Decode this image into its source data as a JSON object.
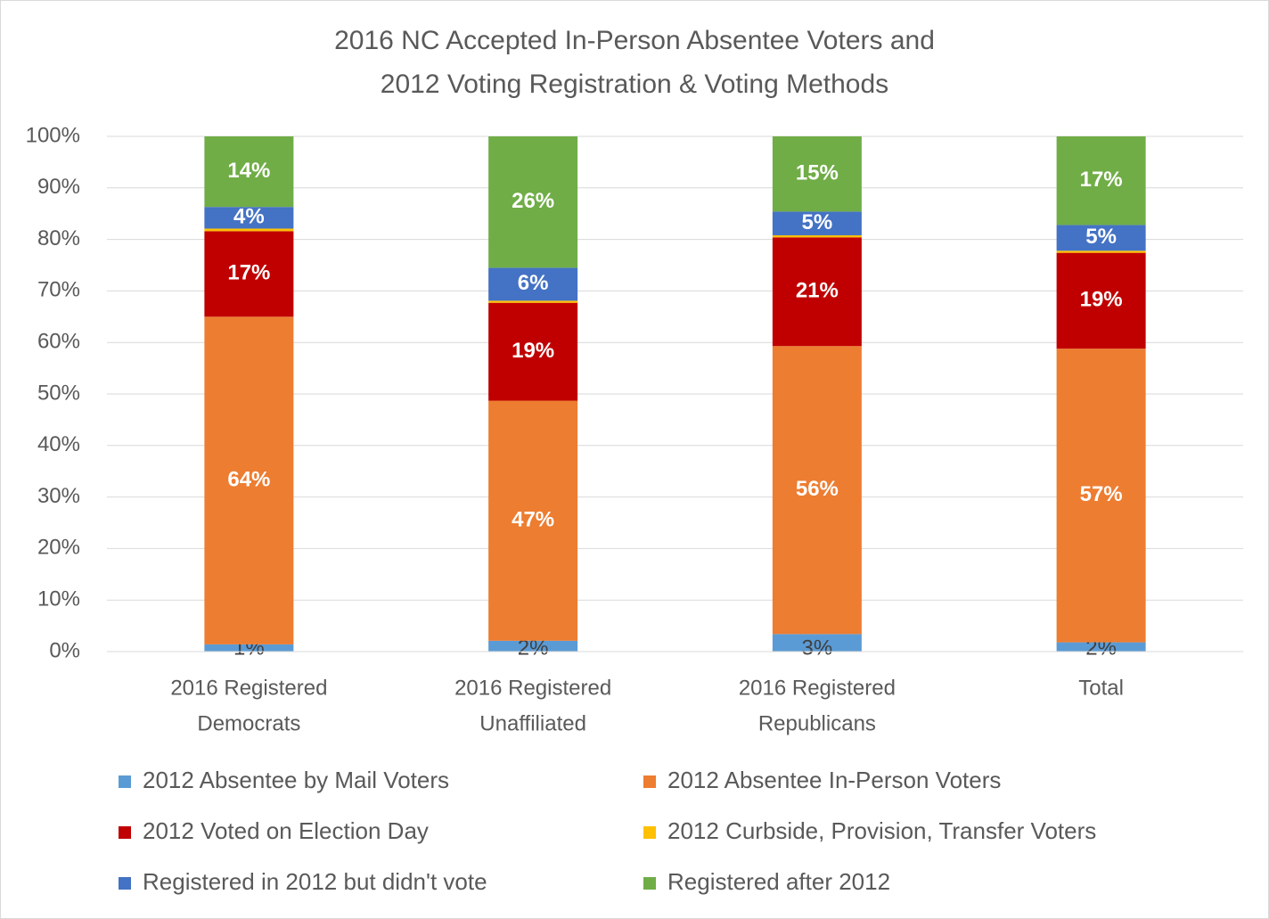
{
  "chart_data": {
    "type": "stacked_bar",
    "title": [
      "2016 NC Accepted In-Person Absentee Voters and",
      "2012 Voting Registration & Voting Methods"
    ],
    "categories": [
      [
        "2016 Registered",
        "Democrats"
      ],
      [
        "2016 Registered",
        "Unaffiliated"
      ],
      [
        "2016 Registered",
        "Republicans"
      ],
      [
        "Total"
      ]
    ],
    "ylim": [
      0,
      100
    ],
    "yticks": [
      {
        "value": 0,
        "label": "0%"
      },
      {
        "value": 10,
        "label": "10%"
      },
      {
        "value": 20,
        "label": "20%"
      },
      {
        "value": 30,
        "label": "30%"
      },
      {
        "value": 40,
        "label": "40%"
      },
      {
        "value": 50,
        "label": "50%"
      },
      {
        "value": 60,
        "label": "60%"
      },
      {
        "value": 70,
        "label": "70%"
      },
      {
        "value": 80,
        "label": "80%"
      },
      {
        "value": 90,
        "label": "90%"
      },
      {
        "value": 100,
        "label": "100%"
      }
    ],
    "grid": true,
    "series": [
      {
        "name": "2012 Absentee by Mail Voters",
        "color": "#5b9bd5",
        "values": [
          1.4,
          2.1,
          3.4,
          1.8
        ],
        "value_labels": [
          "1%",
          "2%",
          "3%",
          "2%"
        ]
      },
      {
        "name": "2012 Absentee In-Person Voters",
        "color": "#ed7d31",
        "values": [
          63.6,
          46.6,
          55.9,
          57.0
        ],
        "value_labels": [
          "64%",
          "47%",
          "56%",
          "57%"
        ]
      },
      {
        "name": "2012 Voted on Election Day",
        "color": "#c00000",
        "values": [
          16.6,
          19.0,
          21.1,
          18.6
        ],
        "value_labels": [
          "17%",
          "19%",
          "21%",
          "19%"
        ]
      },
      {
        "name": "2012 Curbside, Provision, Transfer Voters",
        "color": "#ffc000",
        "values": [
          0.5,
          0.4,
          0.4,
          0.4
        ]
      },
      {
        "name": "Registered in 2012 but didn't vote",
        "color": "#4472c4",
        "values": [
          4.2,
          6.4,
          4.6,
          5.0
        ],
        "value_labels": [
          "4%",
          "6%",
          "5%",
          "5%"
        ]
      },
      {
        "name": "Registered after 2012",
        "color": "#70ad47",
        "values": [
          13.7,
          25.5,
          14.6,
          17.2
        ],
        "value_labels": [
          "14%",
          "26%",
          "15%",
          "17%"
        ]
      }
    ]
  }
}
